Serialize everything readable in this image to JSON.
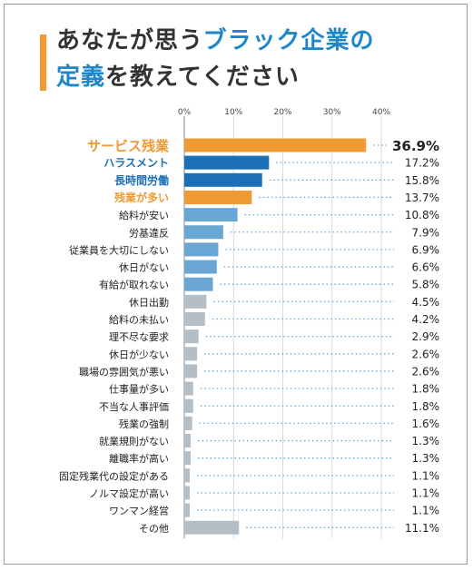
{
  "title": {
    "line1_a": "あなたが思う",
    "line1_b": "ブラック企業の",
    "line2_a": "定義",
    "line2_b": "を教えてください"
  },
  "colors": {
    "orange": "#ef9a33",
    "dark_blue": "#1a6fb5",
    "light_blue": "#6aa6d3",
    "gray": "#b3bec6",
    "title_dark": "#333333",
    "title_blue": "#1f86c8"
  },
  "chart_data": {
    "type": "bar",
    "orientation": "horizontal",
    "title": "あなたが思うブラック企業の定義を教えてください",
    "xlim": [
      0,
      40
    ],
    "x_ticks": [
      "0%",
      "10%",
      "20%",
      "30%",
      "40%"
    ],
    "grid": true,
    "categories": [
      "サービス残業",
      "ハラスメント",
      "長時間労働",
      "残業が多い",
      "給料が安い",
      "労基違反",
      "従業員を大切にしない",
      "休日がない",
      "有給が取れない",
      "休日出勤",
      "給料の未払い",
      "理不尽な要求",
      "休日が少ない",
      "職場の雰囲気が悪い",
      "仕事量が多い",
      "不当な人事評価",
      "残業の強制",
      "就業規則がない",
      "離職率が高い",
      "固定残業代の設定がある",
      "ノルマ設定が高い",
      "ワンマン経営",
      "その他"
    ],
    "values": [
      36.9,
      17.2,
      15.8,
      13.7,
      10.8,
      7.9,
      6.9,
      6.6,
      5.8,
      4.5,
      4.2,
      2.9,
      2.6,
      2.6,
      1.8,
      1.8,
      1.6,
      1.3,
      1.3,
      1.1,
      1.1,
      1.1,
      11.1
    ],
    "value_labels": [
      "36.9%",
      "17.2%",
      "15.8%",
      "13.7%",
      "10.8%",
      "7.9%",
      "6.9%",
      "6.6%",
      "5.8%",
      "4.5%",
      "4.2%",
      "2.9%",
      "2.6%",
      "2.6%",
      "1.8%",
      "1.8%",
      "1.6%",
      "1.3%",
      "1.3%",
      "1.1%",
      "1.1%",
      "1.1%",
      "11.1%"
    ],
    "bar_colors": [
      "#ef9a33",
      "#1a6fb5",
      "#1a6fb5",
      "#ef9a33",
      "#6aa6d3",
      "#6aa6d3",
      "#6aa6d3",
      "#6aa6d3",
      "#6aa6d3",
      "#b3bec6",
      "#b3bec6",
      "#b3bec6",
      "#b3bec6",
      "#b3bec6",
      "#b3bec6",
      "#b3bec6",
      "#b3bec6",
      "#b3bec6",
      "#b3bec6",
      "#b3bec6",
      "#b3bec6",
      "#b3bec6",
      "#b3bec6"
    ],
    "label_colors": [
      "#ef9a33",
      "#1a6fb5",
      "#1a6fb5",
      "#ef9a33",
      "#222222",
      "#222222",
      "#222222",
      "#222222",
      "#222222",
      "#222222",
      "#222222",
      "#222222",
      "#222222",
      "#222222",
      "#222222",
      "#222222",
      "#222222",
      "#222222",
      "#222222",
      "#222222",
      "#222222",
      "#222222",
      "#222222"
    ]
  }
}
